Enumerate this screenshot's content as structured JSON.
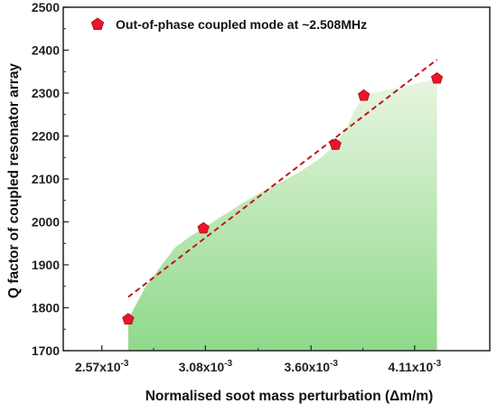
{
  "chart_data": {
    "type": "scatter",
    "title": "",
    "xlabel": "Normalised soot mass perturbation (Δm/m)",
    "ylabel": "Q factor of coupled resonator array",
    "xlim": [
      2.38,
      4.48
    ],
    "ylim": [
      1700,
      2500
    ],
    "x_ticks": [
      {
        "value": 2.57,
        "mant": "2.57x10",
        "exp": "-3"
      },
      {
        "value": 3.08,
        "mant": "3.08x10",
        "exp": "-3"
      },
      {
        "value": 3.6,
        "mant": "3.60x10",
        "exp": "-3"
      },
      {
        "value": 4.11,
        "mant": "4.11x10",
        "exp": "-3"
      }
    ],
    "y_ticks": [
      1700,
      1800,
      1900,
      2000,
      2100,
      2200,
      2300,
      2400,
      2500
    ],
    "grid": false,
    "legend_position": "top-left",
    "series": [
      {
        "name": "Out-of-phase coupled mode at ~2.508MHz",
        "marker": "pentagon",
        "color": "#e8162a",
        "x": [
          2.7,
          3.07,
          3.72,
          3.86,
          4.22
        ],
        "y": [
          1773,
          1985,
          2180,
          2294,
          2334
        ]
      }
    ],
    "trend_line": {
      "x": [
        2.7,
        4.22
      ],
      "y": [
        1825,
        2378
      ],
      "color": "#c0161f",
      "style": "dashed"
    },
    "shaded_area": {
      "x": [
        2.7,
        2.73,
        2.78,
        2.85,
        2.93,
        3.0,
        3.07,
        3.15,
        3.25,
        3.35,
        3.45,
        3.55,
        3.65,
        3.72,
        3.78,
        3.82,
        3.86,
        3.92,
        4.0,
        4.08,
        4.15,
        4.22
      ],
      "y": [
        1773,
        1800,
        1845,
        1890,
        1940,
        1965,
        1985,
        2010,
        2040,
        2068,
        2092,
        2118,
        2150,
        2180,
        2225,
        2265,
        2294,
        2302,
        2310,
        2318,
        2326,
        2334
      ],
      "color_top": "#e8f5e0",
      "color_bottom": "#8fd98a"
    },
    "colors": {
      "ylabel": "#e11d2a",
      "axis": "#222222",
      "marker_stroke": "#b0101c"
    }
  }
}
